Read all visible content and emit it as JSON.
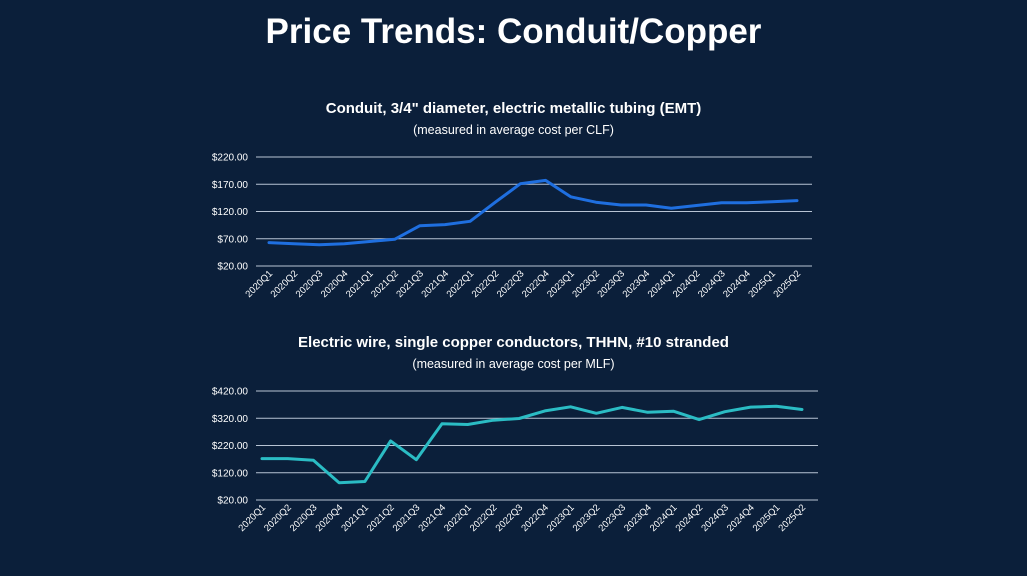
{
  "slide": {
    "title": "Price Trends: Conduit/Copper"
  },
  "colors": {
    "background": "#0b1f3a",
    "conduit_line": "#1f6fe0",
    "wire_line": "#2bbcc4",
    "grid": "#b8c4d4"
  },
  "chart_data": [
    {
      "type": "line",
      "title": "Conduit, 3/4\" diameter, electric metallic tubing (EMT)",
      "subtitle": "(measured in average cost per CLF)",
      "xlabel": "",
      "ylabel": "",
      "categories": [
        "2020Q1",
        "2020Q2",
        "2020Q3",
        "2020Q4",
        "2021Q1",
        "2021Q2",
        "2021Q3",
        "2021Q4",
        "2022Q1",
        "2022Q2",
        "2022Q3",
        "2022Q4",
        "2023Q1",
        "2023Q2",
        "2023Q3",
        "2023Q4",
        "2024Q1",
        "2024Q2",
        "2024Q3",
        "2024Q4",
        "2025Q1",
        "2025Q2"
      ],
      "yticks": [
        "$20.00",
        "$70.00",
        "$120.00",
        "$170.00",
        "$220.00"
      ],
      "ylim": [
        20,
        220
      ],
      "grid": true,
      "legend": "none",
      "series": [
        {
          "values": [
            63,
            61,
            59,
            61,
            65,
            69,
            94,
            96,
            102,
            137,
            171,
            177,
            147,
            137,
            132,
            132,
            126,
            131,
            136,
            136,
            138,
            140
          ]
        }
      ]
    },
    {
      "type": "line",
      "title": "Electric wire, single copper conductors, THHN, #10 stranded",
      "subtitle": "(measured in average cost per MLF)",
      "xlabel": "",
      "ylabel": "",
      "categories": [
        "2020Q1",
        "2020Q2",
        "2020Q3",
        "2020Q4",
        "2021Q1",
        "2021Q2",
        "2021Q3",
        "2021Q4",
        "2022Q1",
        "2022Q2",
        "2022Q3",
        "2022Q4",
        "2023Q1",
        "2023Q2",
        "2023Q3",
        "2023Q4",
        "2024Q1",
        "2024Q2",
        "2024Q3",
        "2024Q4",
        "2025Q1",
        "2025Q2"
      ],
      "yticks": [
        "$20.00",
        "$120.00",
        "$220.00",
        "$320.00",
        "$420.00"
      ],
      "ylim": [
        20,
        420
      ],
      "grid": true,
      "legend": "none",
      "series": [
        {
          "values": [
            172,
            172,
            166,
            83,
            88,
            237,
            168,
            300,
            297,
            313,
            319,
            347,
            362,
            338,
            360,
            342,
            346,
            315,
            344,
            361,
            364,
            352
          ]
        }
      ]
    }
  ]
}
